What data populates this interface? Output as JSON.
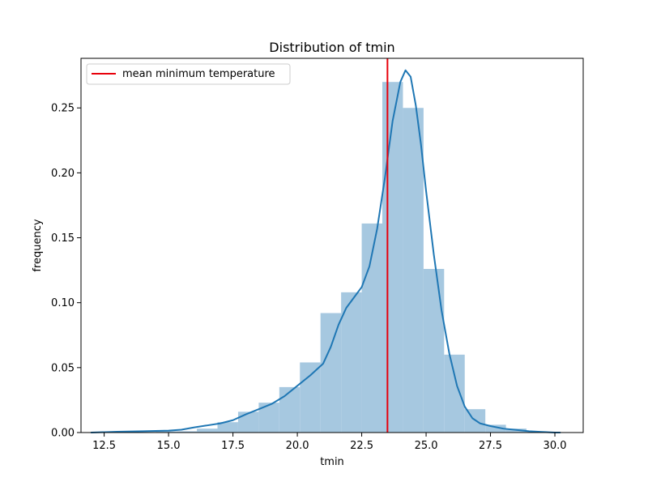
{
  "chart_data": {
    "type": "bar",
    "title": "Distribution of tmin",
    "xlabel": "tmin",
    "ylabel": "frequency",
    "xlim": [
      11.6,
      31.1
    ],
    "ylim": [
      0,
      0.2882
    ],
    "xticks": [
      "12.5",
      "15.0",
      "17.5",
      "20.0",
      "22.5",
      "25.0",
      "27.5",
      "30.0"
    ],
    "xtick_values": [
      12.5,
      15.0,
      17.5,
      20.0,
      22.5,
      25.0,
      27.5,
      30.0
    ],
    "yticks": [
      "0.00",
      "0.05",
      "0.10",
      "0.15",
      "0.20",
      "0.25"
    ],
    "ytick_values": [
      0.0,
      0.05,
      0.1,
      0.15,
      0.2,
      0.25
    ],
    "bin_edges": [
      12.1,
      12.9,
      13.7,
      14.5,
      15.3,
      16.1,
      16.9,
      17.7,
      18.5,
      19.3,
      20.1,
      20.9,
      21.7,
      22.5,
      23.3,
      24.1,
      24.9,
      25.7,
      26.5,
      27.3,
      28.1,
      28.9,
      29.7
    ],
    "histogram_values": [
      0.0,
      0.0005,
      0.0005,
      0.001,
      0.001,
      0.003,
      0.008,
      0.016,
      0.023,
      0.035,
      0.054,
      0.092,
      0.108,
      0.161,
      0.27,
      0.25,
      0.126,
      0.06,
      0.018,
      0.006,
      0.003,
      0.001
    ],
    "kde": {
      "x": [
        12.0,
        13.0,
        14.0,
        15.0,
        15.5,
        16.0,
        16.5,
        17.0,
        17.5,
        18.0,
        18.5,
        19.0,
        19.5,
        20.0,
        20.5,
        21.0,
        21.3,
        21.6,
        21.9,
        22.2,
        22.5,
        22.8,
        23.1,
        23.4,
        23.7,
        24.0,
        24.2,
        24.4,
        24.6,
        24.8,
        25.0,
        25.3,
        25.6,
        25.9,
        26.2,
        26.5,
        26.8,
        27.1,
        27.5,
        28.0,
        28.5,
        29.0,
        29.5,
        30.0,
        30.2
      ],
      "y": [
        0.0,
        0.0006,
        0.001,
        0.0015,
        0.0022,
        0.004,
        0.0055,
        0.007,
        0.0095,
        0.014,
        0.018,
        0.022,
        0.028,
        0.036,
        0.044,
        0.053,
        0.066,
        0.083,
        0.096,
        0.104,
        0.112,
        0.128,
        0.157,
        0.196,
        0.24,
        0.27,
        0.279,
        0.274,
        0.252,
        0.222,
        0.186,
        0.137,
        0.094,
        0.061,
        0.036,
        0.02,
        0.011,
        0.007,
        0.005,
        0.003,
        0.002,
        0.001,
        0.0005,
        0.0,
        0.0
      ]
    },
    "mean_line": {
      "x": 23.5,
      "label": "mean minimum temperature",
      "color": "#e8000b"
    },
    "bar_color": "#a6c8e0",
    "kde_color": "#1f77b4",
    "legend_position": "upper-left",
    "grid": false
  }
}
